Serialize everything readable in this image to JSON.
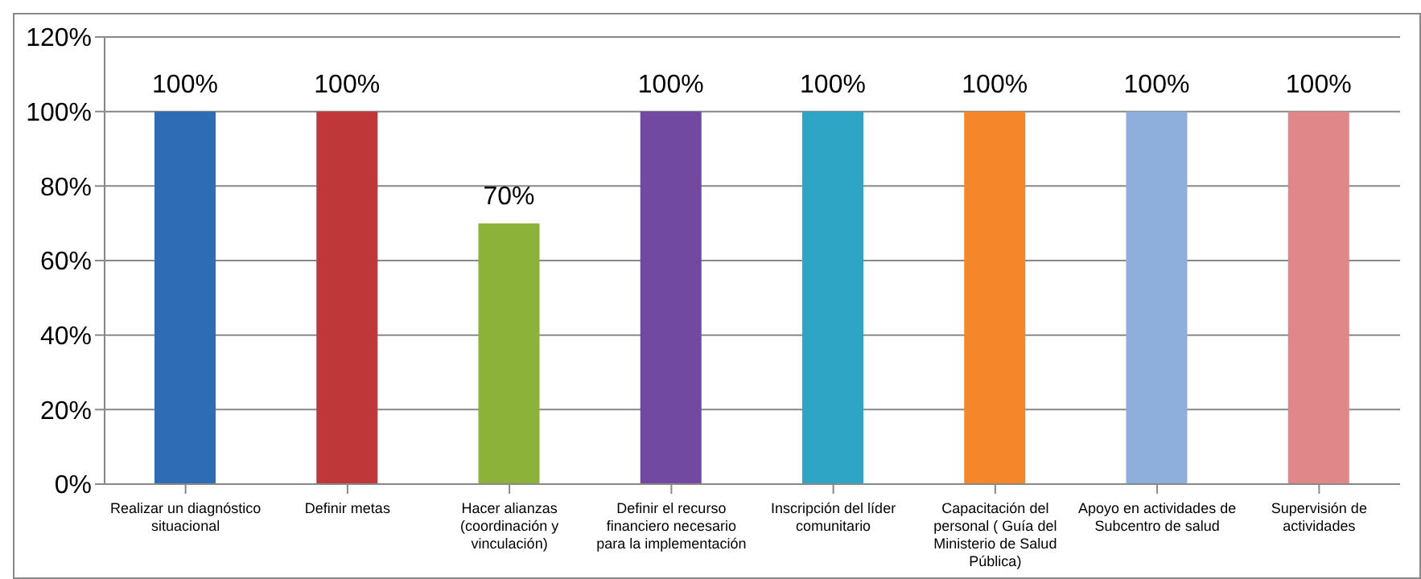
{
  "chart_data": {
    "type": "bar",
    "categories": [
      "Realizar un diagnóstico situacional",
      "Definir metas",
      "Hacer alianzas (coordinación y vinculación)",
      "Definir el recurso financiero necesario para la implementación",
      "Inscripción del líder comunitario",
      "Capacitación del personal ( Guía del Ministerio de Salud Pública)",
      "Apoyo en actividades de Subcentro de salud",
      "Supervisión de actividades"
    ],
    "values": [
      100,
      100,
      70,
      100,
      100,
      100,
      100,
      100
    ],
    "colors": [
      "#2e6db5",
      "#c0373a",
      "#8cb23a",
      "#7249a0",
      "#2ea5c4",
      "#f5872a",
      "#8eaedc",
      "#e0878a"
    ],
    "value_labels": [
      "100%",
      "100%",
      "70%",
      "100%",
      "100%",
      "100%",
      "100%",
      "100%"
    ],
    "ylim": [
      0,
      120
    ],
    "yticks": [
      {
        "value": 0,
        "label": "0%"
      },
      {
        "value": 20,
        "label": "20%"
      },
      {
        "value": 40,
        "label": "40%"
      },
      {
        "value": 60,
        "label": "60%"
      },
      {
        "value": 80,
        "label": "80%"
      },
      {
        "value": 100,
        "label": "100%"
      },
      {
        "value": 120,
        "label": "120%"
      }
    ],
    "grid": "y"
  }
}
